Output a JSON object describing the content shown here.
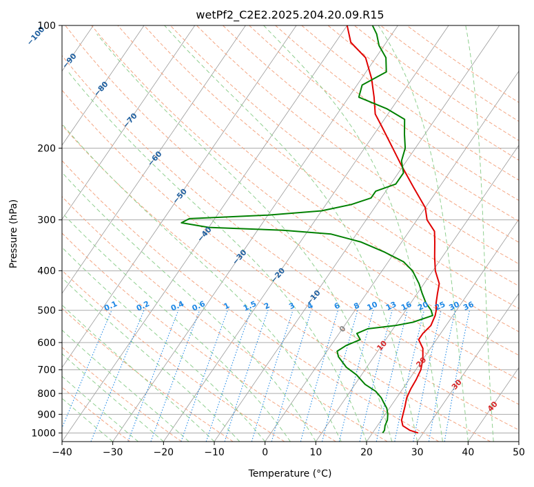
{
  "chart_data": {
    "type": "line",
    "title": "wetPf2_C2E2.2025.204.20.09.R15",
    "xlabel": "Temperature (°C)",
    "ylabel": "Pressure (hPa)",
    "xlim": [
      -40,
      50
    ],
    "ylim": [
      1050,
      100
    ],
    "yscale": "log",
    "grid": true,
    "x_ticks": [
      "−40",
      "−30",
      "−20",
      "−10",
      "0",
      "10",
      "20",
      "30",
      "40",
      "50"
    ],
    "x_tick_values": [
      -40,
      -30,
      -20,
      -10,
      0,
      10,
      20,
      30,
      40,
      50
    ],
    "y_ticks": [
      "100",
      "200",
      "300",
      "400",
      "500",
      "600",
      "700",
      "800",
      "900",
      "1000"
    ],
    "y_tick_values": [
      100,
      200,
      300,
      400,
      500,
      600,
      700,
      800,
      900,
      1000
    ],
    "skew_per_log10_pressure": 55,
    "series": [
      {
        "role": "temperature",
        "color": "#e00000",
        "points": [
          [
            1000,
            29
          ],
          [
            985,
            27
          ],
          [
            960,
            25
          ],
          [
            930,
            24
          ],
          [
            900,
            23.5
          ],
          [
            860,
            22.8
          ],
          [
            820,
            22
          ],
          [
            780,
            21.6
          ],
          [
            740,
            21.4
          ],
          [
            700,
            21
          ],
          [
            660,
            20
          ],
          [
            620,
            18.5
          ],
          [
            590,
            16.5
          ],
          [
            570,
            16.5
          ],
          [
            545,
            17
          ],
          [
            515,
            16.5
          ],
          [
            500,
            16
          ],
          [
            480,
            15
          ],
          [
            455,
            14
          ],
          [
            430,
            13
          ],
          [
            400,
            10.5
          ],
          [
            370,
            8.5
          ],
          [
            340,
            6.5
          ],
          [
            320,
            5
          ],
          [
            300,
            2
          ],
          [
            280,
            0
          ],
          [
            250,
            -5
          ],
          [
            220,
            -10.5
          ],
          [
            195,
            -15.5
          ],
          [
            175,
            -20
          ],
          [
            165,
            -22.5
          ],
          [
            150,
            -25
          ],
          [
            135,
            -28
          ],
          [
            120,
            -32
          ],
          [
            110,
            -37
          ],
          [
            100,
            -40
          ]
        ]
      },
      {
        "role": "dewpoint",
        "color": "#008000",
        "points": [
          [
            1000,
            22
          ],
          [
            985,
            22
          ],
          [
            960,
            21.5
          ],
          [
            930,
            21.2
          ],
          [
            900,
            20.5
          ],
          [
            870,
            19.5
          ],
          [
            840,
            18
          ],
          [
            820,
            17
          ],
          [
            790,
            15
          ],
          [
            760,
            12
          ],
          [
            720,
            9
          ],
          [
            690,
            6
          ],
          [
            650,
            3
          ],
          [
            630,
            2
          ],
          [
            610,
            3
          ],
          [
            590,
            5
          ],
          [
            570,
            3.5
          ],
          [
            555,
            5
          ],
          [
            545,
            10
          ],
          [
            535,
            13
          ],
          [
            515,
            16
          ],
          [
            500,
            15
          ],
          [
            480,
            13
          ],
          [
            455,
            11
          ],
          [
            430,
            9
          ],
          [
            400,
            6
          ],
          [
            380,
            3
          ],
          [
            360,
            -2
          ],
          [
            340,
            -8
          ],
          [
            325,
            -15
          ],
          [
            318,
            -25
          ],
          [
            313,
            -40
          ],
          [
            305,
            -46
          ],
          [
            298,
            -45
          ],
          [
            292,
            -30
          ],
          [
            285,
            -20
          ],
          [
            275,
            -15
          ],
          [
            265,
            -12
          ],
          [
            255,
            -12
          ],
          [
            245,
            -9
          ],
          [
            230,
            -9
          ],
          [
            215,
            -11
          ],
          [
            200,
            -12
          ],
          [
            185,
            -14
          ],
          [
            170,
            -16
          ],
          [
            160,
            -21
          ],
          [
            150,
            -28
          ],
          [
            140,
            -29
          ],
          [
            130,
            -26
          ],
          [
            120,
            -28
          ],
          [
            112,
            -31
          ],
          [
            105,
            -33
          ],
          [
            100,
            -35
          ]
        ]
      }
    ],
    "dry_adiabat_labels": [
      "−100",
      "−90",
      "−80",
      "−70",
      "−60",
      "−50",
      "−40",
      "−30",
      "−20",
      "−10",
      "0",
      "10",
      "20",
      "30",
      "40"
    ],
    "mixing_ratio_labels": [
      "0.1",
      "0.2",
      "0.4",
      "0.6",
      "1",
      "1.5",
      "2",
      "3",
      "4",
      "6",
      "8",
      "10",
      "13",
      "16",
      "20",
      "25",
      "30",
      "36"
    ],
    "colors": {
      "dry_adiabat": "#f4a582",
      "moist_adiabat": "#8fcf8f",
      "mixing_ratio": "#1e88e5",
      "isotherm": "#999999",
      "isobar": "#aaaaaa",
      "dry_label": "#1f5f9f",
      "warm_label": "#d62728",
      "moist_label": "#888888"
    }
  }
}
